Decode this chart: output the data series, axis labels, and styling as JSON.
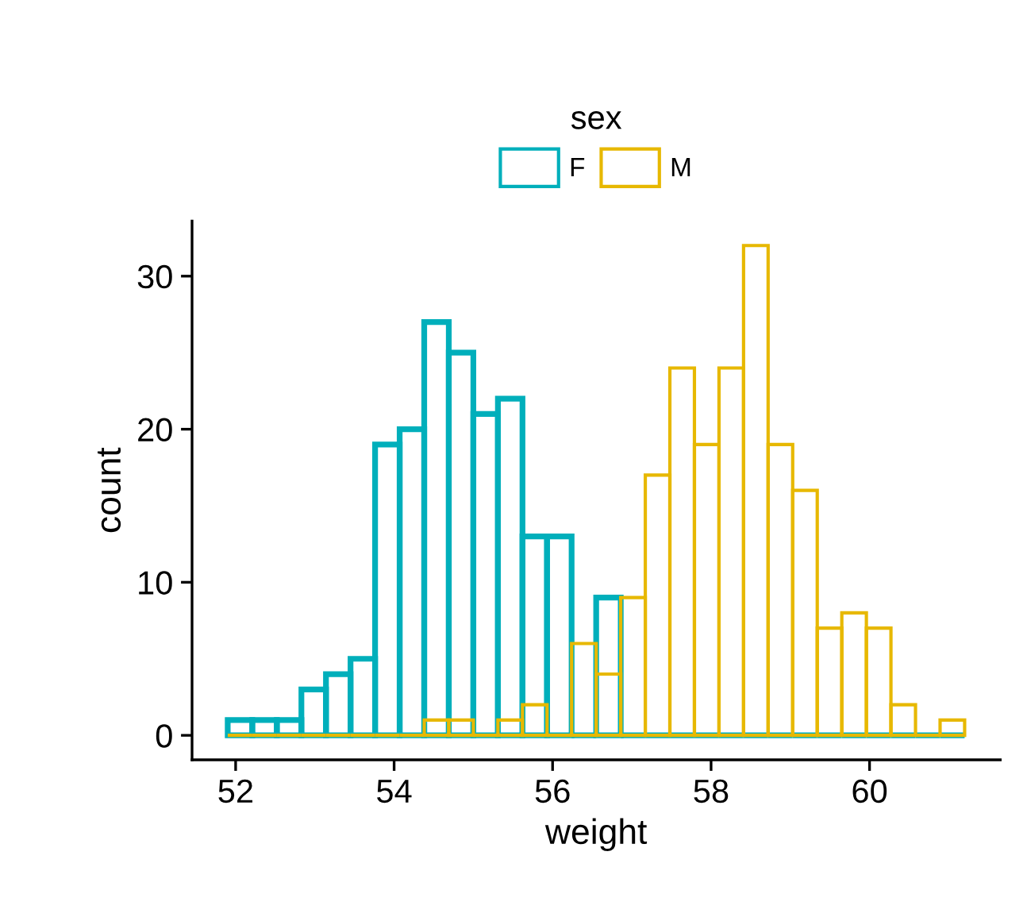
{
  "chart_data": {
    "type": "histogram",
    "xlabel": "weight",
    "ylabel": "count",
    "legend_title": "sex",
    "bins": [
      51.9,
      52.21,
      52.52,
      52.83,
      53.14,
      53.45,
      53.76,
      54.07,
      54.38,
      54.69,
      55.0,
      55.31,
      55.62,
      55.93,
      56.24,
      56.55,
      56.86,
      57.17,
      57.48,
      57.79,
      58.1,
      58.41,
      58.72,
      59.03,
      59.34,
      59.65,
      59.96,
      60.27,
      60.58,
      60.89,
      61.2
    ],
    "series": [
      {
        "name": "F",
        "color": "#00afbb",
        "values": [
          1,
          1,
          1,
          3,
          4,
          5,
          19,
          20,
          27,
          25,
          21,
          22,
          13,
          13,
          0,
          9,
          0,
          0,
          0,
          0,
          0,
          0,
          0,
          0,
          0,
          0,
          0,
          0,
          0,
          0
        ]
      },
      {
        "name": "M",
        "color": "#e7b800",
        "values": [
          0,
          0,
          0,
          0,
          0,
          0,
          0,
          0,
          1,
          1,
          0,
          1,
          2,
          0,
          6,
          4,
          9,
          17,
          24,
          19,
          24,
          32,
          19,
          16,
          7,
          8,
          7,
          2,
          0,
          1
        ]
      }
    ],
    "xlim": [
      51.45,
      61.65
    ],
    "ylim": [
      -1.6,
      33.6
    ],
    "xticks": [
      52,
      54,
      56,
      58,
      60
    ],
    "yticks": [
      0,
      10,
      20,
      30
    ],
    "legend": "top",
    "grid": false
  }
}
